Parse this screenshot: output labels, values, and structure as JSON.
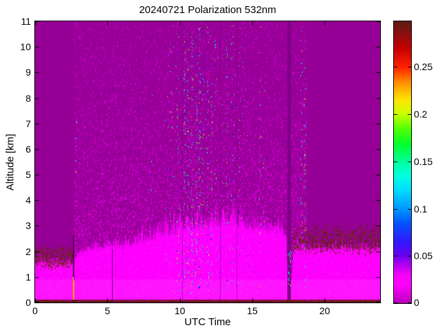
{
  "title": "20240721 Polarization 532nm",
  "axes": {
    "xlabel": "UTC Time",
    "ylabel": "Altitude [km]",
    "x_range": [
      0,
      23.83
    ],
    "y_range": [
      0,
      11
    ],
    "x_ticks": [
      {
        "v": 0,
        "label": "0"
      },
      {
        "v": 5,
        "label": "5"
      },
      {
        "v": 10,
        "label": "10"
      },
      {
        "v": 15,
        "label": "15"
      },
      {
        "v": 20,
        "label": "20"
      }
    ],
    "y_ticks": [
      {
        "v": 0,
        "label": "0"
      },
      {
        "v": 1,
        "label": "1"
      },
      {
        "v": 2,
        "label": "2"
      },
      {
        "v": 3,
        "label": "3"
      },
      {
        "v": 4,
        "label": "4"
      },
      {
        "v": 5,
        "label": "5"
      },
      {
        "v": 6,
        "label": "6"
      },
      {
        "v": 7,
        "label": "7"
      },
      {
        "v": 8,
        "label": "8"
      },
      {
        "v": 9,
        "label": "9"
      },
      {
        "v": 10,
        "label": "10"
      },
      {
        "v": 11,
        "label": "11"
      }
    ]
  },
  "colorbar": {
    "vmin": 0,
    "vmax": 0.2983,
    "ticks": [
      {
        "v": 0,
        "label": "0"
      },
      {
        "v": 0.05,
        "label": "0.05"
      },
      {
        "v": 0.1,
        "label": "0.1"
      },
      {
        "v": 0.15,
        "label": "0.15"
      },
      {
        "v": 0.2,
        "label": "0.2"
      },
      {
        "v": 0.25,
        "label": "0.25"
      }
    ],
    "stops": [
      {
        "v": 0.0,
        "c": "#BB00BB"
      },
      {
        "v": 0.02,
        "c": "#FF00FF"
      },
      {
        "v": 0.03,
        "c": "#F500FA"
      },
      {
        "v": 0.042,
        "c": "#A800F0"
      },
      {
        "v": 0.05,
        "c": "#6A00F0"
      },
      {
        "v": 0.065,
        "c": "#3318FF"
      },
      {
        "v": 0.085,
        "c": "#0055FF"
      },
      {
        "v": 0.1,
        "c": "#0099FF"
      },
      {
        "v": 0.12,
        "c": "#00DDFF"
      },
      {
        "v": 0.135,
        "c": "#00FFE0"
      },
      {
        "v": 0.15,
        "c": "#00FF9A"
      },
      {
        "v": 0.168,
        "c": "#00FF2E"
      },
      {
        "v": 0.185,
        "c": "#55FF00"
      },
      {
        "v": 0.2,
        "c": "#C8FF00"
      },
      {
        "v": 0.215,
        "c": "#FFE600"
      },
      {
        "v": 0.233,
        "c": "#FF9100"
      },
      {
        "v": 0.25,
        "c": "#FF2000"
      },
      {
        "v": 0.27,
        "c": "#C40000"
      },
      {
        "v": 0.285,
        "c": "#8C0E0E"
      },
      {
        "v": 0.2983,
        "c": "#5C1C12"
      }
    ]
  },
  "chart_data": {
    "type": "heatmap",
    "title": "20240721 Polarization 532nm",
    "xlabel": "UTC Time",
    "ylabel": "Altitude [km]",
    "x_range": [
      0,
      23.83
    ],
    "y_range": [
      0,
      11
    ],
    "value_range": [
      0,
      0.2983
    ],
    "background_color": "#970097",
    "speckle_region": {
      "u0": 2.7,
      "u1": 18.8,
      "base_density": 0.12,
      "gradient_density": 0.3,
      "colors": [
        "#A800A8",
        "#B600B6",
        "#C800C8",
        "#DC00DC",
        "#EE00EE"
      ]
    },
    "boundary_layer": {
      "color": "#FF00FF",
      "top_km_profile": [
        [
          0,
          1.55
        ],
        [
          1,
          1.6
        ],
        [
          2,
          1.55
        ],
        [
          2.6,
          1.5
        ],
        [
          3,
          1.9
        ],
        [
          4,
          2.0
        ],
        [
          5,
          2.1
        ],
        [
          6,
          2.15
        ],
        [
          7,
          2.3
        ],
        [
          8,
          2.45
        ],
        [
          9,
          2.6
        ],
        [
          10,
          2.75
        ],
        [
          11,
          2.9
        ],
        [
          12,
          2.95
        ],
        [
          13,
          3.05
        ],
        [
          14,
          3.0
        ],
        [
          15,
          2.85
        ],
        [
          16,
          2.8
        ],
        [
          17,
          2.7
        ],
        [
          17.3,
          2.55
        ],
        [
          17.45,
          0.3
        ],
        [
          17.65,
          0.3
        ],
        [
          17.8,
          2.1
        ],
        [
          19,
          2.1
        ],
        [
          20,
          2.1
        ],
        [
          21,
          2.12
        ],
        [
          22,
          2.15
        ],
        [
          23,
          2.1
        ],
        [
          23.83,
          2.05
        ]
      ],
      "fuzz_km_profile": [
        [
          0,
          0.25
        ],
        [
          2.6,
          0.25
        ],
        [
          3,
          0.45
        ],
        [
          6,
          0.55
        ],
        [
          8,
          0.75
        ],
        [
          9,
          0.95
        ],
        [
          10,
          1.1
        ],
        [
          14,
          1.1
        ],
        [
          15,
          0.85
        ],
        [
          17,
          0.6
        ],
        [
          18,
          0.5
        ],
        [
          19,
          0.35
        ],
        [
          23.83,
          0.3
        ]
      ],
      "low_wash": {
        "a0": 0.12,
        "a1": 0.9,
        "color": "rgba(255,80,255,0.25)"
      }
    },
    "depol_bands": [
      {
        "u0": 0,
        "u1": 2.62,
        "top_km": 2.25,
        "bottom_km": 1.35,
        "density": 0.6,
        "colors": [
          "#6B2114",
          "#7A2B1B",
          "#5E1C10"
        ]
      },
      {
        "u0": 17.75,
        "u1": 23.83,
        "top_km": 3.05,
        "bottom_km": 1.95,
        "density": 0.52,
        "colors": [
          "#6B2114",
          "#7A2B1B",
          "#5E1C10"
        ]
      }
    ],
    "ground_strip": {
      "top_km": 0.1,
      "color": "#6E1C10",
      "speckle_colors": [
        "#8A008A",
        "#4A1208",
        "#B00090"
      ],
      "speckle_density": 0.3
    },
    "vertical_features": [
      {
        "kind": "line",
        "u": 2.62,
        "a0": 0,
        "a1": 2.6,
        "color": "rgba(70,0,70,0.9)",
        "w": 2
      },
      {
        "kind": "line",
        "u": 2.62,
        "a0": 0.1,
        "a1": 0.85,
        "color": "#FFA500",
        "w": 2
      },
      {
        "kind": "line",
        "u": 2.62,
        "a0": 0.85,
        "a1": 1.0,
        "color": "#FFFF00",
        "w": 1
      },
      {
        "kind": "line",
        "u": 5.3,
        "a0": 0,
        "a1": 2.1,
        "color": "rgba(80,0,90,0.85)",
        "w": 1
      },
      {
        "kind": "line",
        "u": 10.15,
        "a0": 0,
        "a1": 11,
        "color": "rgba(100,0,110,0.45)",
        "w": 1
      },
      {
        "kind": "line",
        "u": 12.77,
        "a0": 0,
        "a1": 11,
        "color": "rgba(100,0,110,0.5)",
        "w": 1
      },
      {
        "kind": "line",
        "u": 13.9,
        "a0": 0,
        "a1": 11,
        "color": "rgba(100,0,110,0.4)",
        "w": 1
      },
      {
        "kind": "band",
        "u0": 17.42,
        "u1": 17.68,
        "a0": 0.12,
        "a1": 11,
        "color": "#7C0084"
      }
    ],
    "band_sparkles": {
      "u0": 17.44,
      "u1": 17.66,
      "a0": 0.3,
      "a1": 2.2,
      "n": 22,
      "colors": [
        "#00FF66",
        "#00FFCC",
        "#AAFF00",
        "#00CCFF"
      ]
    },
    "noise_streaks": [
      {
        "u": 2.78,
        "a0": 4.5,
        "a1": 9.5,
        "d": 0.04
      },
      {
        "u": 8.0,
        "a0": 4,
        "a1": 9,
        "d": 0.03
      },
      {
        "u": 9.0,
        "a0": 3,
        "a1": 8,
        "d": 0.03
      },
      {
        "u": 9.35,
        "a0": 3,
        "a1": 10.5,
        "d": 0.06
      },
      {
        "u": 9.85,
        "a0": 1,
        "a1": 10.8,
        "d": 0.1
      },
      {
        "u": 10.3,
        "a0": 0.5,
        "a1": 10.8,
        "d": 0.16
      },
      {
        "u": 10.55,
        "a0": 1,
        "a1": 10.5,
        "d": 0.14
      },
      {
        "u": 10.8,
        "a0": 0.3,
        "a1": 10.8,
        "d": 0.18
      },
      {
        "u": 11.1,
        "a0": 1,
        "a1": 10.5,
        "d": 0.12
      },
      {
        "u": 11.35,
        "a0": 0.5,
        "a1": 11,
        "d": 0.17
      },
      {
        "u": 11.6,
        "a0": 2,
        "a1": 10,
        "d": 0.1
      },
      {
        "u": 11.9,
        "a0": 0.3,
        "a1": 10.8,
        "d": 0.16
      },
      {
        "u": 12.15,
        "a0": 1,
        "a1": 9,
        "d": 0.1
      },
      {
        "u": 12.45,
        "a0": 2,
        "a1": 10.5,
        "d": 0.07
      },
      {
        "u": 13.25,
        "a0": 0.5,
        "a1": 10.8,
        "d": 0.11
      },
      {
        "u": 13.6,
        "a0": 1,
        "a1": 10.5,
        "d": 0.1
      },
      {
        "u": 14.1,
        "a0": 2,
        "a1": 8,
        "d": 0.05
      },
      {
        "u": 15.5,
        "a0": 0.5,
        "a1": 10.8,
        "d": 0.11
      },
      {
        "u": 15.75,
        "a0": 3,
        "a1": 9,
        "d": 0.05
      },
      {
        "u": 18.35,
        "a0": 2,
        "a1": 10.8,
        "d": 0.09
      },
      {
        "u": 18.6,
        "a0": 0.5,
        "a1": 10.5,
        "d": 0.14
      }
    ],
    "noise_palette": [
      [
        "#00FFFF",
        3
      ],
      [
        "#33CCFF",
        2
      ],
      [
        "#2233FF",
        2
      ],
      [
        "#0000DD",
        1.5
      ],
      [
        "#00FF66",
        1.5
      ],
      [
        "#66FF00",
        1
      ],
      [
        "#FFFF00",
        1
      ],
      [
        "#FF8800",
        0.7
      ],
      [
        "#FF2200",
        0.8
      ],
      [
        "#FF0066",
        0.5
      ]
    ],
    "scatter_pixels": {
      "u0": 9,
      "u1": 14.8,
      "a0": 0.2,
      "a1": 11,
      "n": 220
    },
    "lavender_patches": {
      "u0": 9,
      "u1": 15.2,
      "a0": 0.7,
      "a1": 2.7,
      "n": 160,
      "color": "rgba(160,120,255,0.45)"
    }
  }
}
